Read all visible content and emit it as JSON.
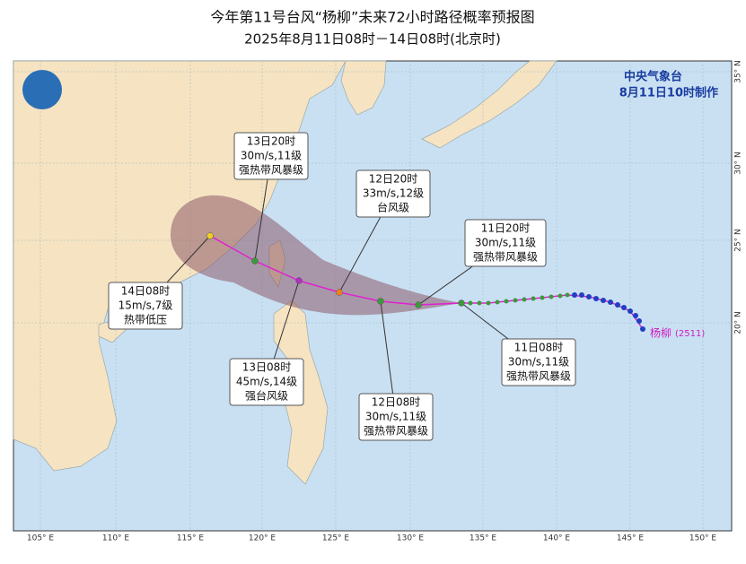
{
  "header": {
    "title": "今年第11号台风“杨柳”未来72小时路径概率预报图",
    "subtitle": "2025年8月11日08时－14日08时(北京时)"
  },
  "agency": {
    "name": "中央气象台",
    "issued": "8月11日10时制作"
  },
  "storm": {
    "name": "杨柳",
    "code": "(2511)"
  },
  "forecasts": [
    {
      "time": "11日08时",
      "wind": "30m/s,11级",
      "level": "强热带风暴级"
    },
    {
      "time": "11日20时",
      "wind": "30m/s,11级",
      "level": "强热带风暴级"
    },
    {
      "time": "12日08时",
      "wind": "30m/s,11级",
      "level": "强热带风暴级"
    },
    {
      "time": "12日20时",
      "wind": "33m/s,12级",
      "level": "台风级"
    },
    {
      "time": "13日08时",
      "wind": "45m/s,14级",
      "level": "强台风级"
    },
    {
      "time": "13日20时",
      "wind": "30m/s,11级",
      "level": "强热带风暴级"
    },
    {
      "time": "14日08时",
      "wind": "15m/s,7级",
      "level": "热带低压"
    }
  ],
  "lon_labels": [
    "105° E",
    "110° E",
    "115° E",
    "120° E",
    "125° E",
    "130° E",
    "135° E",
    "140° E",
    "145° E",
    "150° E"
  ],
  "lat_labels": [
    "35° N",
    "30° N",
    "25° N",
    "20° N"
  ]
}
